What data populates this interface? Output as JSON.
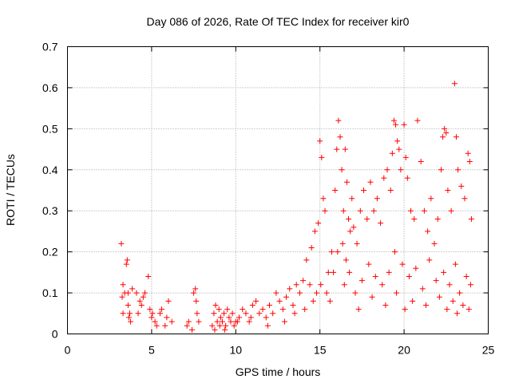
{
  "chart_data": {
    "type": "scatter",
    "title": "Day 086 of 2026, Rate Of TEC Index for receiver kir0",
    "xlabel": "GPS time / hours",
    "ylabel": "ROTI / TECUs",
    "xlim": [
      0,
      25
    ],
    "ylim": [
      0,
      0.7
    ],
    "xticks": [
      "0",
      "5",
      "10",
      "15",
      "20",
      "25"
    ],
    "yticks": [
      "0",
      "0.1",
      "0.2",
      "0.3",
      "0.4",
      "0.5",
      "0.6",
      "0.7"
    ],
    "grid": true,
    "marker": "+",
    "color": "#ff0000",
    "grid_color": "#a0a0a0",
    "series": [
      {
        "x": [
          3.2,
          3.25,
          3.3,
          3.4,
          3.5,
          3.55,
          3.6,
          3.65,
          3.7,
          3.75,
          3.85,
          4.1,
          4.2,
          4.3,
          4.4,
          4.6,
          4.8,
          4.9,
          5.0,
          5.05,
          5.2,
          5.5,
          5.6,
          5.8,
          6.0,
          6.2,
          7.1,
          7.2,
          7.5,
          7.6,
          7.65,
          7.7,
          7.8,
          8.6,
          8.7,
          8.8,
          8.9,
          9.0,
          9.1,
          9.2,
          9.3,
          9.4,
          9.5,
          9.6,
          9.7,
          9.8,
          9.9,
          10.0,
          10.2,
          10.4,
          10.6,
          10.8,
          11.0,
          11.2,
          11.4,
          11.6,
          11.8,
          12.0,
          12.2,
          12.4,
          12.6,
          12.8,
          13.0,
          13.2,
          13.4,
          13.6,
          13.8,
          14.0,
          14.2,
          14.4,
          14.5,
          14.7,
          14.9,
          15.0,
          15.1,
          15.2,
          15.3,
          15.5,
          15.7,
          15.9,
          16.0,
          16.1,
          16.2,
          16.3,
          16.4,
          16.5,
          16.6,
          16.7,
          16.8,
          16.9,
          17.0,
          17.2,
          17.4,
          17.6,
          17.8,
          18.0,
          18.2,
          18.4,
          18.6,
          18.8,
          19.0,
          19.2,
          19.3,
          19.4,
          19.5,
          19.6,
          19.7,
          19.8,
          20.0,
          20.1,
          20.2,
          20.4,
          20.6,
          20.8,
          21.0,
          21.2,
          21.4,
          21.6,
          21.8,
          22.0,
          22.2,
          22.3,
          22.4,
          22.5,
          22.6,
          22.8,
          23.0,
          23.1,
          23.2,
          23.4,
          23.6,
          23.8,
          23.9,
          24.0,
          3.3,
          3.6,
          4.5,
          5.3,
          5.9,
          7.4,
          8.75,
          9.05,
          9.35,
          10.1,
          10.9,
          11.9,
          12.9,
          13.5,
          14.1,
          14.6,
          15.05,
          15.4,
          15.8,
          16.05,
          16.35,
          16.55,
          16.75,
          17.1,
          17.5,
          17.9,
          18.3,
          18.7,
          19.1,
          19.45,
          19.9,
          20.3,
          20.7,
          21.1,
          21.5,
          21.9,
          22.35,
          22.7,
          23.05,
          23.3,
          23.7,
          23.95,
          14.8,
          15.6,
          16.45,
          17.3,
          18.1,
          18.9,
          19.55,
          20.05,
          20.5,
          21.3,
          22.1,
          22.55,
          22.9,
          23.15,
          23.5,
          23.85
        ],
        "y": [
          0.22,
          0.09,
          0.12,
          0.1,
          0.17,
          0.18,
          0.07,
          0.04,
          0.05,
          0.03,
          0.11,
          0.1,
          0.05,
          0.08,
          0.07,
          0.1,
          0.14,
          0.06,
          0.04,
          0.05,
          0.03,
          0.05,
          0.06,
          0.02,
          0.08,
          0.03,
          0.02,
          0.03,
          0.1,
          0.11,
          0.08,
          0.05,
          0.03,
          0.02,
          0.05,
          0.07,
          0.03,
          0.06,
          0.04,
          0.03,
          0.05,
          0.02,
          0.06,
          0.04,
          0.03,
          0.05,
          0.02,
          0.03,
          0.04,
          0.06,
          0.05,
          0.03,
          0.07,
          0.08,
          0.05,
          0.06,
          0.04,
          0.07,
          0.05,
          0.1,
          0.08,
          0.06,
          0.09,
          0.11,
          0.07,
          0.12,
          0.1,
          0.13,
          0.18,
          0.12,
          0.21,
          0.25,
          0.27,
          0.47,
          0.43,
          0.33,
          0.3,
          0.15,
          0.2,
          0.35,
          0.45,
          0.52,
          0.48,
          0.4,
          0.3,
          0.45,
          0.37,
          0.28,
          0.25,
          0.33,
          0.26,
          0.22,
          0.3,
          0.35,
          0.28,
          0.37,
          0.3,
          0.33,
          0.27,
          0.38,
          0.4,
          0.35,
          0.44,
          0.52,
          0.51,
          0.47,
          0.45,
          0.4,
          0.51,
          0.43,
          0.38,
          0.3,
          0.28,
          0.52,
          0.42,
          0.3,
          0.25,
          0.33,
          0.22,
          0.28,
          0.4,
          0.48,
          0.5,
          0.49,
          0.35,
          0.3,
          0.61,
          0.48,
          0.4,
          0.36,
          0.33,
          0.44,
          0.42,
          0.28,
          0.05,
          0.1,
          0.09,
          0.02,
          0.04,
          0.01,
          0.01,
          0.02,
          0.01,
          0.03,
          0.04,
          0.02,
          0.03,
          0.05,
          0.06,
          0.08,
          0.12,
          0.1,
          0.15,
          0.2,
          0.22,
          0.18,
          0.15,
          0.1,
          0.13,
          0.17,
          0.14,
          0.12,
          0.15,
          0.2,
          0.17,
          0.14,
          0.16,
          0.11,
          0.18,
          0.13,
          0.15,
          0.12,
          0.17,
          0.1,
          0.14,
          0.12,
          0.1,
          0.08,
          0.12,
          0.06,
          0.09,
          0.07,
          0.1,
          0.06,
          0.08,
          0.07,
          0.09,
          0.06,
          0.08,
          0.05,
          0.07,
          0.06
        ]
      }
    ]
  }
}
